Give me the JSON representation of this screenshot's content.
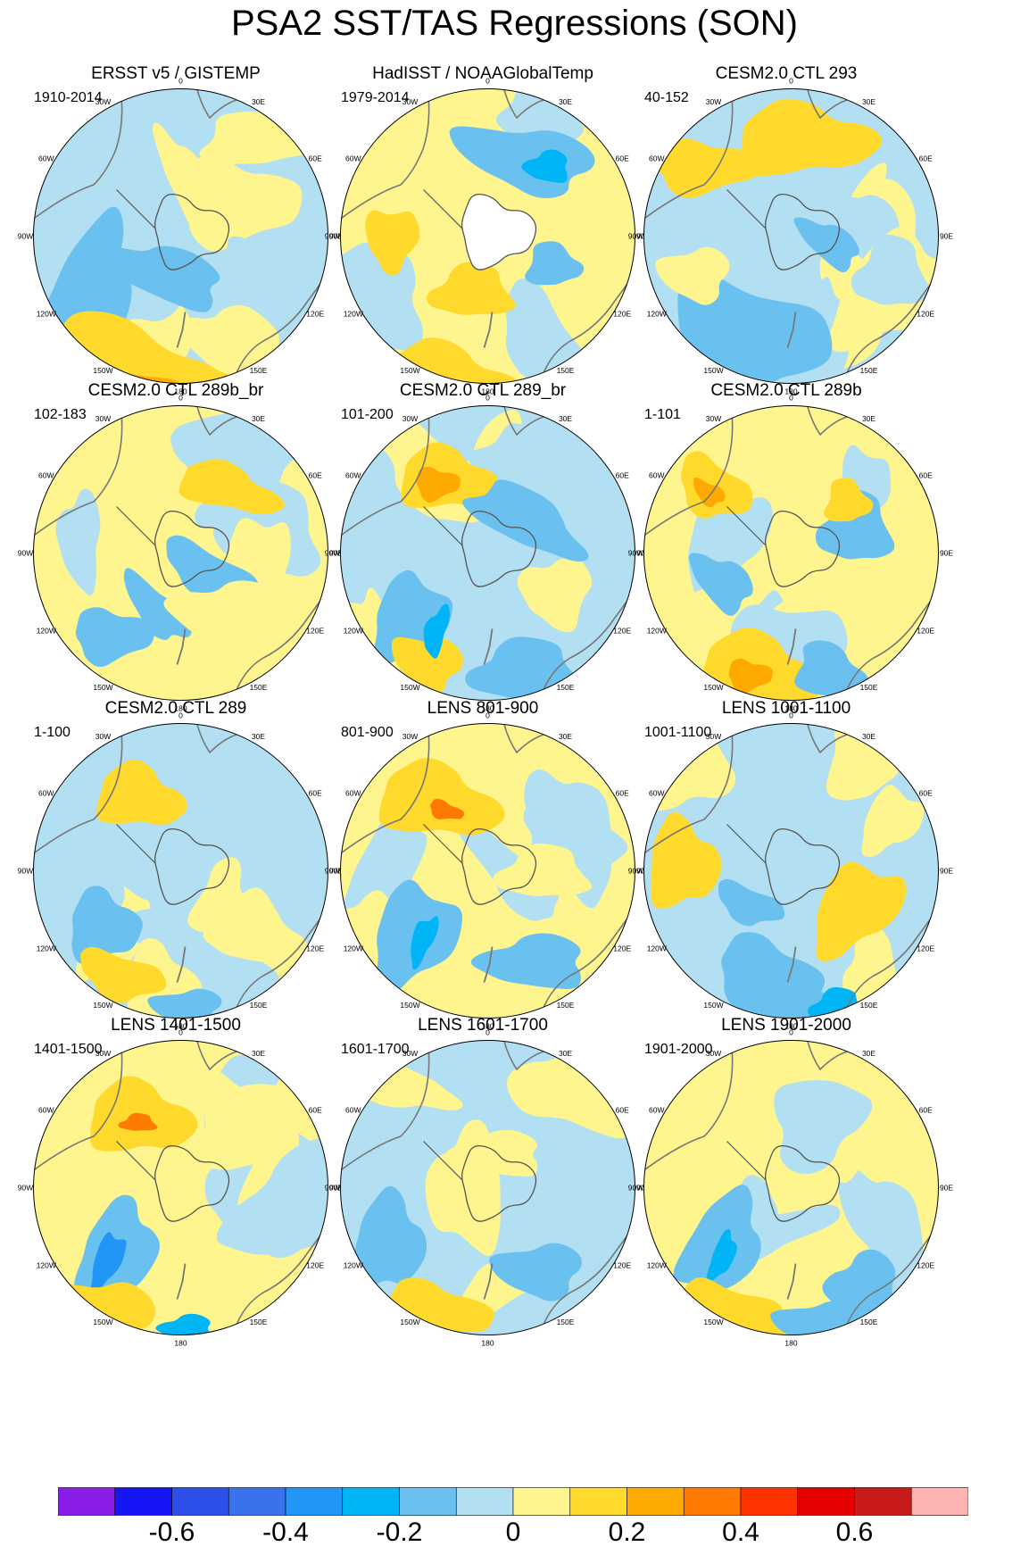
{
  "title": "PSA2 SST/TAS Regressions (SON)",
  "longitude_labels": [
    "0",
    "30E",
    "60E",
    "90E",
    "120E",
    "150E",
    "180",
    "150W",
    "120W",
    "90W",
    "60W",
    "30W"
  ],
  "panels": [
    {
      "title": "ERSST v5 / GISTEMP",
      "period": "1910-2014"
    },
    {
      "title": "HadISST / NOAAGlobalTemp",
      "period": "1979-2014"
    },
    {
      "title": "CESM2.0 CTL 293",
      "period": "40-152"
    },
    {
      "title": "CESM2.0 CTL 289b_br",
      "period": "102-183"
    },
    {
      "title": "CESM2.0 CTL 289_br",
      "period": "101-200"
    },
    {
      "title": "CESM2.0 CTL 289b",
      "period": "1-101"
    },
    {
      "title": "CESM2.0 CTL 289",
      "period": "1-100"
    },
    {
      "title": "LENS 801-900",
      "period": "801-900"
    },
    {
      "title": "LENS 1001-1100",
      "period": "1001-1100"
    },
    {
      "title": "LENS 1401-1500",
      "period": "1401-1500"
    },
    {
      "title": "LENS 1601-1700",
      "period": "1601-1700"
    },
    {
      "title": "LENS 1901-2000",
      "period": "1901-2000"
    }
  ],
  "colorbar": {
    "colors": [
      "#8a1ee8",
      "#1515f5",
      "#2f4fea",
      "#3a72ee",
      "#2196f6",
      "#00b5f6",
      "#6ac1f0",
      "#b3dff2",
      "#fff58f",
      "#ffd92c",
      "#ffaa00",
      "#ff7a00",
      "#ff3300",
      "#e60000",
      "#c81a1a",
      "#ffb4b4"
    ],
    "labels": [
      "-0.6",
      "-0.4",
      "-0.2",
      "0",
      "0.2",
      "0.4",
      "0.6"
    ]
  },
  "chart_data": {
    "type": "heatmap",
    "projection": "south polar stereographic",
    "colorbar_labels": [
      "-0.6",
      "-0.4",
      "-0.2",
      "0",
      "0.2",
      "0.4",
      "0.6"
    ],
    "colorbar_levels": [
      -0.7,
      -0.6,
      -0.5,
      -0.4,
      -0.3,
      -0.2,
      -0.1,
      0,
      0.1,
      0.2,
      0.3,
      0.4,
      0.5,
      0.6,
      0.7
    ],
    "panel_periods": [
      "1910-2014",
      "1979-2014",
      "40-152",
      "102-183",
      "101-200",
      "1-101",
      "1-100",
      "801-900",
      "1001-1100",
      "1401-1500",
      "1601-1700",
      "1901-2000"
    ]
  }
}
